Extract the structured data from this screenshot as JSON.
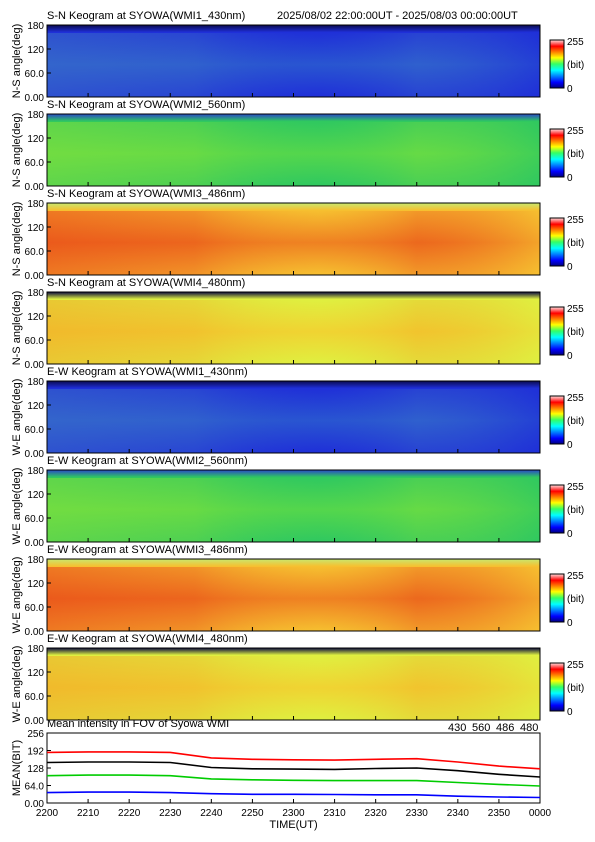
{
  "header": {
    "time_range": "2025/08/02 22:00:00UT - 2025/08/03 00:00:00UT"
  },
  "colorbar": {
    "max_label": "255",
    "unit_label": "(bit)",
    "min_label": "0"
  },
  "chart_data": [
    {
      "type": "heatmap",
      "title": "S-N Keogram at SYOWA(WMI1_430nm)",
      "ylabel": "N-S angle(deg)",
      "yticks": [
        "180",
        "120",
        "60.0",
        "0.00"
      ],
      "ylim": [
        0,
        180
      ],
      "zlim": [
        0,
        255
      ],
      "profile": "blue"
    },
    {
      "type": "heatmap",
      "title": "S-N Keogram at SYOWA(WMI2_560nm)",
      "ylabel": "N-S angle(deg)",
      "yticks": [
        "180",
        "120",
        "60.0",
        "0.00"
      ],
      "ylim": [
        0,
        180
      ],
      "zlim": [
        0,
        255
      ],
      "profile": "green"
    },
    {
      "type": "heatmap",
      "title": "S-N Keogram at SYOWA(WMI3_486nm)",
      "ylabel": "N-S angle(deg)",
      "yticks": [
        "180",
        "120",
        "60.0",
        "0.00"
      ],
      "ylim": [
        0,
        180
      ],
      "zlim": [
        0,
        255
      ],
      "profile": "warm"
    },
    {
      "type": "heatmap",
      "title": "S-N Keogram at SYOWA(WMI4_480nm)",
      "ylabel": "N-S angle(deg)",
      "yticks": [
        "180",
        "120",
        "60.0",
        "0.00"
      ],
      "ylim": [
        0,
        180
      ],
      "zlim": [
        0,
        255
      ],
      "profile": "yellow"
    },
    {
      "type": "heatmap",
      "title": "E-W Keogram at SYOWA(WMI1_430nm)",
      "ylabel": "W-E angle(deg)",
      "yticks": [
        "180",
        "120",
        "60.0",
        "0.00"
      ],
      "ylim": [
        0,
        180
      ],
      "zlim": [
        0,
        255
      ],
      "profile": "blue"
    },
    {
      "type": "heatmap",
      "title": "E-W Keogram at SYOWA(WMI2_560nm)",
      "ylabel": "W-E angle(deg)",
      "yticks": [
        "180",
        "120",
        "60.0",
        "0.00"
      ],
      "ylim": [
        0,
        180
      ],
      "zlim": [
        0,
        255
      ],
      "profile": "green"
    },
    {
      "type": "heatmap",
      "title": "E-W Keogram at SYOWA(WMI3_486nm)",
      "ylabel": "W-E angle(deg)",
      "yticks": [
        "180",
        "120",
        "60.0",
        "0.00"
      ],
      "ylim": [
        0,
        180
      ],
      "zlim": [
        0,
        255
      ],
      "profile": "warm"
    },
    {
      "type": "heatmap",
      "title": "E-W Keogram at SYOWA(WMI4_480nm)",
      "ylabel": "W-E angle(deg)",
      "yticks": [
        "180",
        "120",
        "60.0",
        "0.00"
      ],
      "ylim": [
        0,
        180
      ],
      "zlim": [
        0,
        255
      ],
      "profile": "yellow"
    },
    {
      "type": "line",
      "title": "Mean intensity in FOV of Syowa WMI",
      "xlabel": "TIME(UT)",
      "ylabel": "MEAN(BIT)",
      "xticks": [
        "2200",
        "2210",
        "2220",
        "2230",
        "2240",
        "2250",
        "2300",
        "2310",
        "2320",
        "2330",
        "2340",
        "2350",
        "0000"
      ],
      "yticks": [
        "256",
        "192",
        "128",
        "64.0",
        "0.00"
      ],
      "ylim": [
        0,
        256
      ],
      "xlim": [
        0,
        120
      ],
      "series": [
        {
          "name": "430",
          "color": "#0000ff",
          "x": [
            0,
            10,
            20,
            30,
            40,
            50,
            60,
            70,
            80,
            90,
            100,
            110,
            120
          ],
          "values": [
            38,
            40,
            40,
            38,
            34,
            32,
            32,
            31,
            30,
            30,
            25,
            22,
            20
          ]
        },
        {
          "name": "560",
          "color": "#00cc00",
          "x": [
            0,
            10,
            20,
            30,
            40,
            50,
            60,
            70,
            80,
            90,
            100,
            110,
            120
          ],
          "values": [
            100,
            102,
            102,
            100,
            88,
            85,
            83,
            82,
            82,
            82,
            75,
            68,
            62
          ]
        },
        {
          "name": "486",
          "color": "#ff0000",
          "x": [
            0,
            10,
            20,
            30,
            40,
            50,
            60,
            70,
            80,
            90,
            100,
            110,
            120
          ],
          "values": [
            185,
            187,
            187,
            185,
            165,
            160,
            158,
            157,
            160,
            162,
            150,
            135,
            125
          ]
        },
        {
          "name": "480",
          "color": "#000000",
          "x": [
            0,
            10,
            20,
            30,
            40,
            50,
            60,
            70,
            80,
            90,
            100,
            110,
            120
          ],
          "values": [
            148,
            150,
            150,
            148,
            130,
            125,
            124,
            123,
            126,
            128,
            118,
            105,
            95
          ]
        }
      ]
    }
  ]
}
